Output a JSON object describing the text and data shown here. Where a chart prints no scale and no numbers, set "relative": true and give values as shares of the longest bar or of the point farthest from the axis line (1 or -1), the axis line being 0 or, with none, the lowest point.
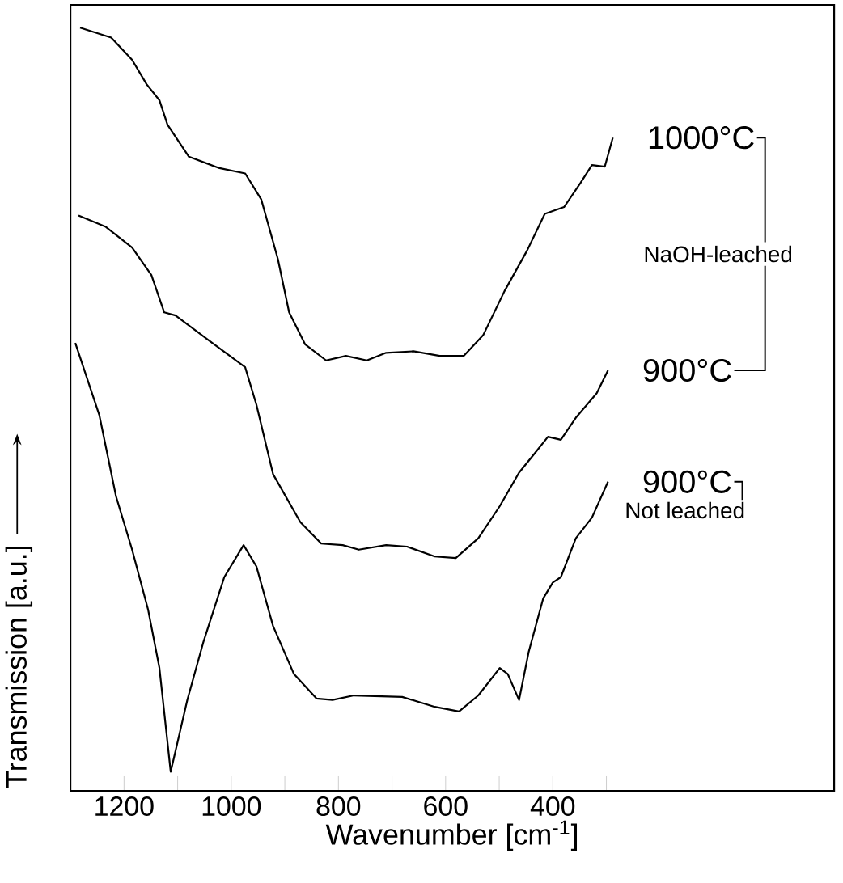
{
  "chart_data": {
    "type": "line",
    "relative": true,
    "xlabel": "Wavenumber [cm$^{-1}$]",
    "ylabel": "Transmission [a.u.]",
    "xlim": [
      1300,
      -125
    ],
    "xticks": [
      1200,
      {
        "value": 1100,
        "label": null
      },
      1000,
      {
        "value": 900,
        "label": null
      },
      800,
      {
        "value": 700,
        "label": null
      },
      600,
      {
        "value": 500,
        "label": null
      },
      400,
      {
        "value": 300,
        "label": null
      }
    ],
    "tick_labels": "x",
    "annotations": [
      "NaOH-leached",
      "Not leached"
    ],
    "series": [
      {
        "name": "1000°C",
        "color": "#000000",
        "x": [
          1282,
          1224,
          1185,
          1158,
          1134,
          1119,
          1079,
          1022,
          974,
          944,
          913,
          892,
          862,
          823,
          786,
          747,
          711,
          660,
          611,
          566,
          530,
          490,
          448,
          415,
          379,
          348,
          327,
          303,
          288
        ],
        "values": [
          1.0,
          0.987,
          0.958,
          0.926,
          0.905,
          0.873,
          0.831,
          0.816,
          0.809,
          0.775,
          0.697,
          0.627,
          0.585,
          0.564,
          0.57,
          0.564,
          0.574,
          0.576,
          0.57,
          0.57,
          0.597,
          0.655,
          0.708,
          0.756,
          0.765,
          0.797,
          0.82,
          0.818,
          0.856
        ]
      },
      {
        "name": "900°C",
        "color": "#000000",
        "x": [
          1285,
          1234,
          1185,
          1149,
          1125,
          1104,
          1043,
          974,
          953,
          922,
          871,
          832,
          792,
          762,
          711,
          672,
          620,
          581,
          539,
          499,
          463,
          433,
          409,
          385,
          357,
          318,
          297
        ],
        "values": [
          0.754,
          0.739,
          0.712,
          0.676,
          0.627,
          0.623,
          0.591,
          0.555,
          0.506,
          0.415,
          0.352,
          0.324,
          0.322,
          0.316,
          0.322,
          0.32,
          0.307,
          0.305,
          0.331,
          0.373,
          0.417,
          0.443,
          0.464,
          0.46,
          0.489,
          0.521,
          0.551
        ]
      },
      {
        "name": "900°C",
        "color": "#000000",
        "x": [
          1291,
          1246,
          1215,
          1185,
          1155,
          1134,
          1113,
          1082,
          1052,
          1013,
          977,
          953,
          922,
          883,
          841,
          811,
          771,
          681,
          620,
          575,
          539,
          499,
          484,
          463,
          445,
          418,
          400,
          385,
          357,
          327,
          297
        ],
        "values": [
          0.587,
          0.492,
          0.386,
          0.316,
          0.237,
          0.161,
          0.025,
          0.119,
          0.195,
          0.28,
          0.322,
          0.294,
          0.216,
          0.153,
          0.121,
          0.119,
          0.125,
          0.123,
          0.11,
          0.104,
          0.125,
          0.161,
          0.153,
          0.119,
          0.182,
          0.252,
          0.273,
          0.28,
          0.331,
          0.358,
          0.405
        ]
      }
    ]
  }
}
